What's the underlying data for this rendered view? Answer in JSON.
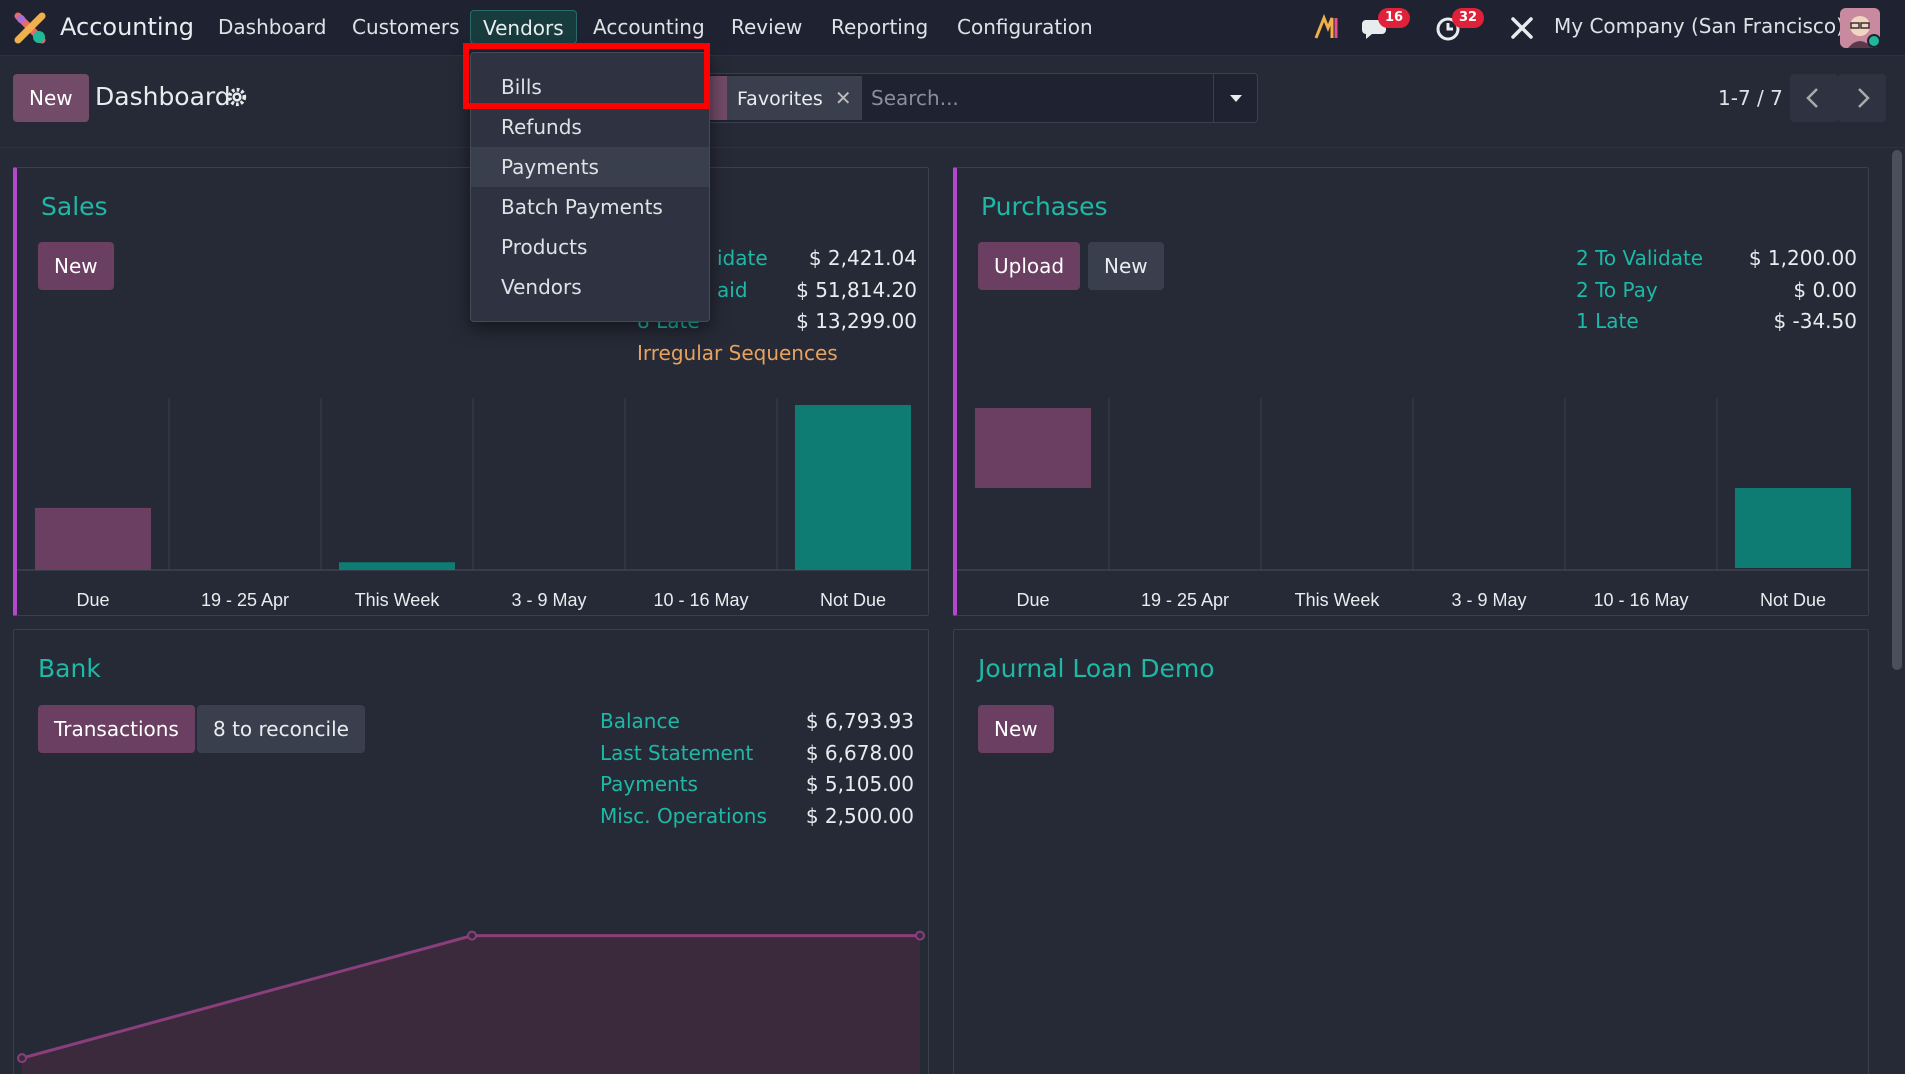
{
  "navbar": {
    "app_name": "Accounting",
    "menu": [
      "Dashboard",
      "Customers",
      "Vendors",
      "Accounting",
      "Review",
      "Reporting",
      "Configuration"
    ],
    "active_menu": "Vendors",
    "messages_badge": "16",
    "activities_badge": "32",
    "company": "My Company (San Francisco)"
  },
  "control_panel": {
    "new_label": "New",
    "title": "Dashboard",
    "facet_label": "Favorites",
    "search_placeholder": "Search...",
    "pager": "1-7 / 7"
  },
  "vendors_dropdown": {
    "items": [
      "Bills",
      "Refunds",
      "Payments",
      "Batch Payments",
      "Products",
      "Vendors"
    ],
    "hovered": "Payments",
    "highlighted": "Bills"
  },
  "sales": {
    "title": "Sales",
    "new_label": "New",
    "stats": [
      {
        "label": "idate",
        "value": "$ 2,421.04"
      },
      {
        "label": "aid",
        "value": "$ 51,814.20"
      },
      {
        "label": "8 Late",
        "value": "$ 13,299.00"
      }
    ],
    "warning": "Irregular Sequences",
    "chart_data": {
      "type": "bar",
      "categories": [
        "Due",
        "19 - 25 Apr",
        "This Week",
        "3 - 9 May",
        "10 - 16 May",
        "Not Due"
      ],
      "values": [
        32,
        0,
        4,
        0,
        0,
        85
      ],
      "colors": [
        "#6b3f62",
        "#0e7c73",
        "#0e7c73",
        "#0e7c73",
        "#0e7c73",
        "#0e7c73"
      ]
    }
  },
  "purchases": {
    "title": "Purchases",
    "upload_label": "Upload",
    "new_label": "New",
    "stats": [
      {
        "label": "2 To Validate",
        "value": "$ 1,200.00"
      },
      {
        "label": "2 To Pay",
        "value": "$ 0.00"
      },
      {
        "label": "1 Late",
        "value": "$ -34.50"
      }
    ],
    "chart_data": {
      "type": "bar",
      "categories": [
        "Due",
        "19 - 25 Apr",
        "This Week",
        "3 - 9 May",
        "10 - 16 May",
        "Not Due"
      ],
      "values": [
        40,
        0,
        0,
        0,
        0,
        -40
      ],
      "colors": [
        "#6b3f62",
        "#0e7c73",
        "#0e7c73",
        "#0e7c73",
        "#0e7c73",
        "#0e7c73"
      ]
    }
  },
  "bank": {
    "title": "Bank",
    "transactions_label": "Transactions",
    "reconcile_label": "8 to reconcile",
    "stats": [
      {
        "label": "Balance",
        "value": "$ 6,793.93"
      },
      {
        "label": "Last Statement",
        "value": "$ 6,678.00"
      },
      {
        "label": "Payments",
        "value": "$ 5,105.00"
      },
      {
        "label": "Misc. Operations",
        "value": "$ 2,500.00"
      }
    ],
    "chart_data": {
      "type": "area",
      "y": [
        1,
        6.6,
        6.6
      ]
    }
  },
  "journal_loan": {
    "title": "Journal Loan Demo",
    "new_label": "New"
  }
}
